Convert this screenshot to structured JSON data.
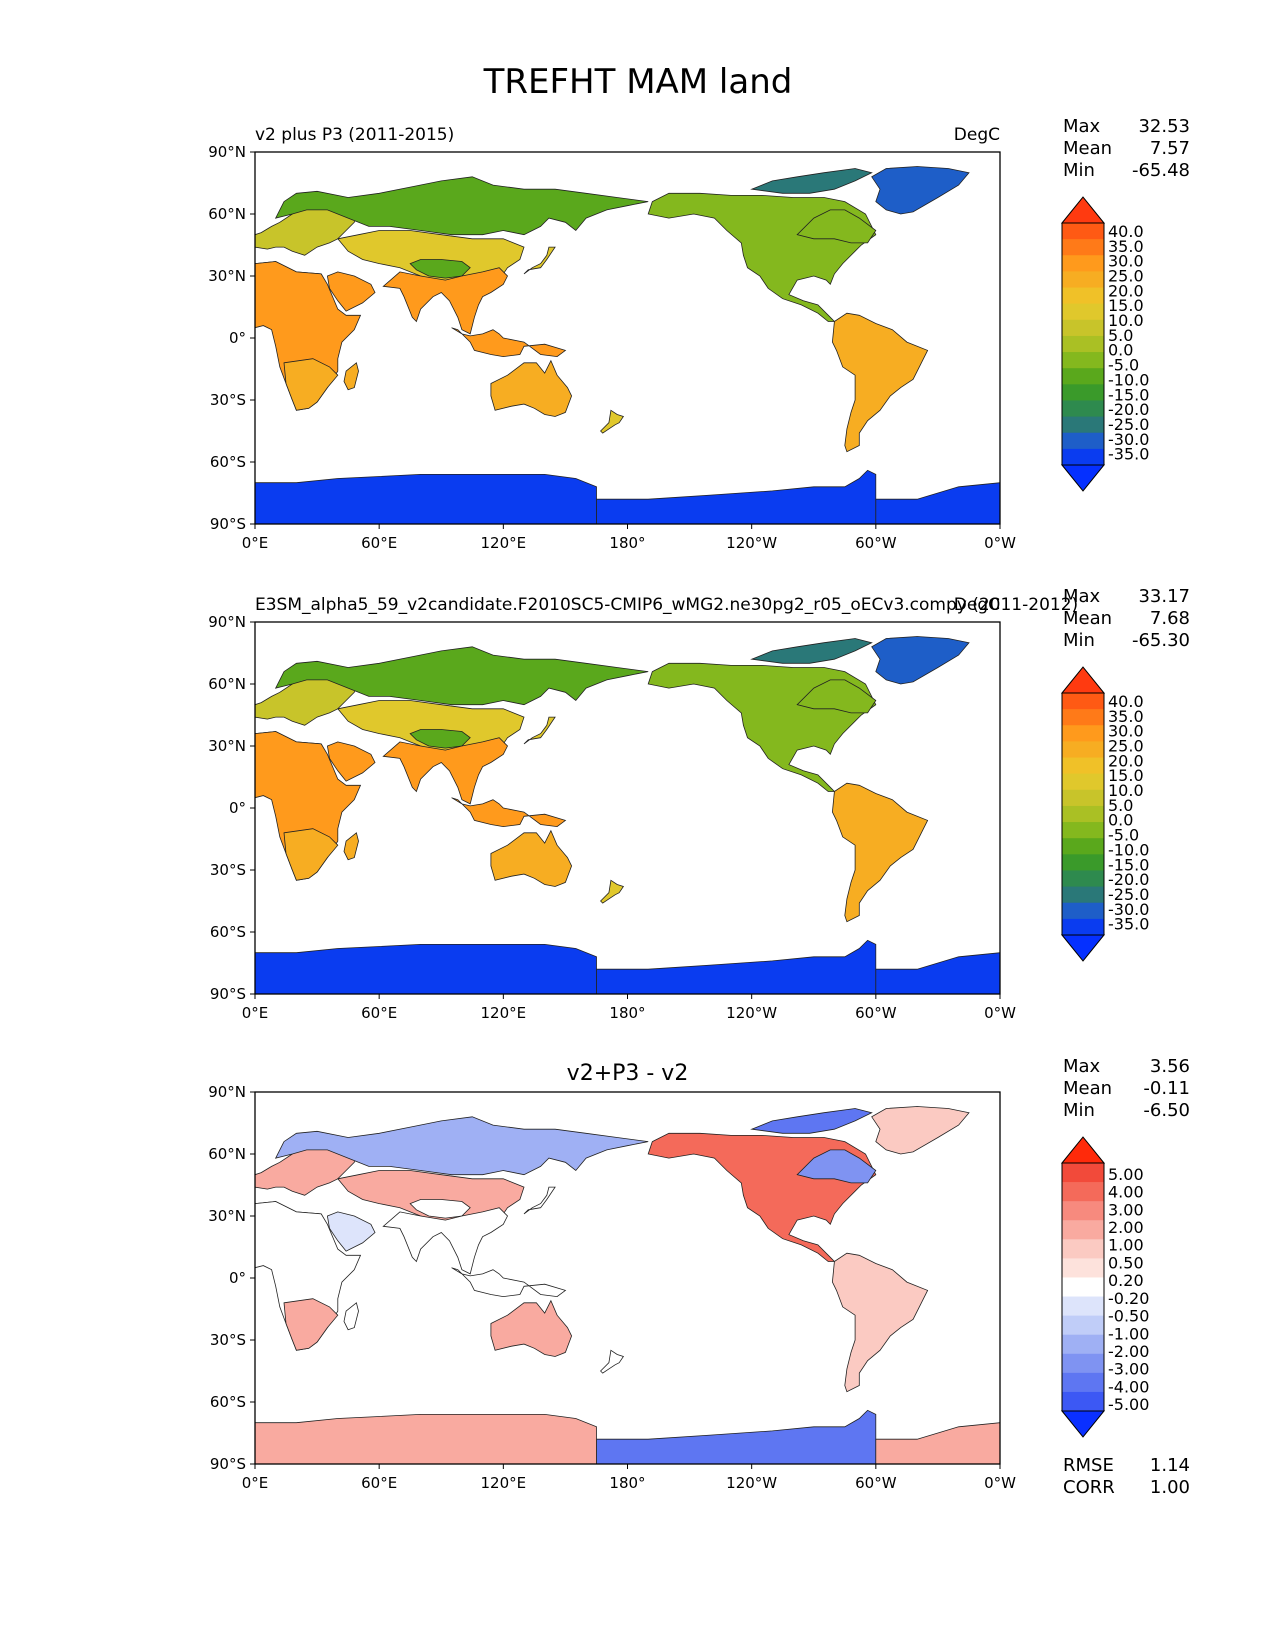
{
  "figure": {
    "title": "TREFHT MAM land"
  },
  "chart_data": [
    {
      "type": "heatmap",
      "panel": "test",
      "title_left": "v2 plus P3 (2011-2015)",
      "units": "DegC",
      "stats": [
        {
          "label": "Max",
          "value": "32.53"
        },
        {
          "label": "Mean",
          "value": "7.57"
        },
        {
          "label": "Min",
          "value": "-65.48"
        }
      ],
      "lat_ticks": [
        "90°N",
        "60°N",
        "30°N",
        "0°",
        "30°S",
        "60°S",
        "90°S"
      ],
      "lon_ticks": [
        "0°E",
        "60°E",
        "120°E",
        "180°",
        "120°W",
        "60°W",
        "0°W"
      ],
      "xlim": [
        0,
        360
      ],
      "ylim": [
        -90,
        90
      ],
      "colorbar": {
        "levels": [
          "40.0",
          "35.0",
          "30.0",
          "25.0",
          "20.0",
          "15.0",
          "10.0",
          "5.0",
          "0.0",
          "-5.0",
          "-10.0",
          "-15.0",
          "-20.0",
          "-25.0",
          "-30.0",
          "-35.0"
        ],
        "colors": [
          "#ff3a10",
          "#ff5a14",
          "#ff7a18",
          "#ff9a1c",
          "#f7ad22",
          "#f0c128",
          "#e0c82c",
          "#c8c42a",
          "#aac024",
          "#84b81e",
          "#5aa81c",
          "#3a9a2a",
          "#2e8a4e",
          "#2a7878",
          "#1e5ec8",
          "#0a3cf0",
          "#0530ff"
        ]
      },
      "regions": [
        {
          "name": "north-eurasia",
          "mean": -10
        },
        {
          "name": "europe",
          "mean": 5
        },
        {
          "name": "tibet",
          "mean": -10
        },
        {
          "name": "africa",
          "mean": 25
        },
        {
          "name": "india-se-asia",
          "mean": 25
        },
        {
          "name": "australia",
          "mean": 22
        },
        {
          "name": "north-america",
          "mean": -2
        },
        {
          "name": "greenland",
          "mean": -30
        },
        {
          "name": "south-america",
          "mean": 22
        },
        {
          "name": "antarctica",
          "mean": -35
        }
      ]
    },
    {
      "type": "heatmap",
      "panel": "reference",
      "title_left": "E3SM_alpha5_59_v2candidate.F2010SC5-CMIP6_wMG2.ne30pg2_r05_oECv3.compy (2011-2012)",
      "units": "DegC",
      "stats": [
        {
          "label": "Max",
          "value": "33.17"
        },
        {
          "label": "Mean",
          "value": "7.68"
        },
        {
          "label": "Min",
          "value": "-65.30"
        }
      ],
      "lat_ticks": [
        "90°N",
        "60°N",
        "30°N",
        "0°",
        "30°S",
        "60°S",
        "90°S"
      ],
      "lon_ticks": [
        "0°E",
        "60°E",
        "120°E",
        "180°",
        "120°W",
        "60°W",
        "0°W"
      ],
      "xlim": [
        0,
        360
      ],
      "ylim": [
        -90,
        90
      ],
      "colorbar": {
        "levels": [
          "40.0",
          "35.0",
          "30.0",
          "25.0",
          "20.0",
          "15.0",
          "10.0",
          "5.0",
          "0.0",
          "-5.0",
          "-10.0",
          "-15.0",
          "-20.0",
          "-25.0",
          "-30.0",
          "-35.0"
        ],
        "colors": [
          "#ff3a10",
          "#ff5a14",
          "#ff7a18",
          "#ff9a1c",
          "#f7ad22",
          "#f0c128",
          "#e0c82c",
          "#c8c42a",
          "#aac024",
          "#84b81e",
          "#5aa81c",
          "#3a9a2a",
          "#2e8a4e",
          "#2a7878",
          "#1e5ec8",
          "#0a3cf0",
          "#0530ff"
        ]
      },
      "regions": [
        {
          "name": "north-eurasia",
          "mean": -10
        },
        {
          "name": "europe",
          "mean": 5
        },
        {
          "name": "tibet",
          "mean": -10
        },
        {
          "name": "africa",
          "mean": 25
        },
        {
          "name": "india-se-asia",
          "mean": 25
        },
        {
          "name": "australia",
          "mean": 22
        },
        {
          "name": "north-america",
          "mean": -2
        },
        {
          "name": "greenland",
          "mean": -30
        },
        {
          "name": "south-america",
          "mean": 22
        },
        {
          "name": "antarctica",
          "mean": -35
        }
      ]
    },
    {
      "type": "heatmap",
      "panel": "difference",
      "title_center": "v2+P3 - v2",
      "stats": [
        {
          "label": "Max",
          "value": "3.56"
        },
        {
          "label": "Mean",
          "value": "-0.11"
        },
        {
          "label": "Min",
          "value": "-6.50"
        }
      ],
      "extra_stats": [
        {
          "label": "RMSE",
          "value": "1.14"
        },
        {
          "label": "CORR",
          "value": "1.00"
        }
      ],
      "lat_ticks": [
        "90°N",
        "60°N",
        "30°N",
        "0°",
        "30°S",
        "60°S",
        "90°S"
      ],
      "lon_ticks": [
        "0°E",
        "60°E",
        "120°E",
        "180°",
        "120°W",
        "60°W",
        "0°W"
      ],
      "xlim": [
        0,
        360
      ],
      "ylim": [
        -90,
        90
      ],
      "colorbar": {
        "levels": [
          "5.00",
          "4.00",
          "3.00",
          "2.00",
          "1.00",
          "0.50",
          "0.20",
          "-0.20",
          "-0.50",
          "-1.00",
          "-2.00",
          "-3.00",
          "-4.00",
          "-5.00"
        ],
        "colors": [
          "#ff2a0a",
          "#f24a3a",
          "#f46a5a",
          "#f78a7e",
          "#f9aaa0",
          "#fbcac2",
          "#fde2dc",
          "#ffffff",
          "#dde4fb",
          "#c0cdf8",
          "#9fb0f4",
          "#7f93f2",
          "#5e76f2",
          "#3c58f4",
          "#0a30ff"
        ]
      },
      "regions": [
        {
          "name": "north-eurasia",
          "mean": -2
        },
        {
          "name": "europe",
          "mean": 1
        },
        {
          "name": "central-asia",
          "mean": 1
        },
        {
          "name": "sahara",
          "mean": -1
        },
        {
          "name": "south-africa",
          "mean": 1
        },
        {
          "name": "australia",
          "mean": 1
        },
        {
          "name": "north-america",
          "mean": 3
        },
        {
          "name": "canada-east",
          "mean": -3
        },
        {
          "name": "greenland",
          "mean": 0.5
        },
        {
          "name": "south-america",
          "mean": 0.5
        },
        {
          "name": "east-antarctica",
          "mean": 1
        },
        {
          "name": "west-antarctica",
          "mean": -4
        }
      ]
    }
  ]
}
